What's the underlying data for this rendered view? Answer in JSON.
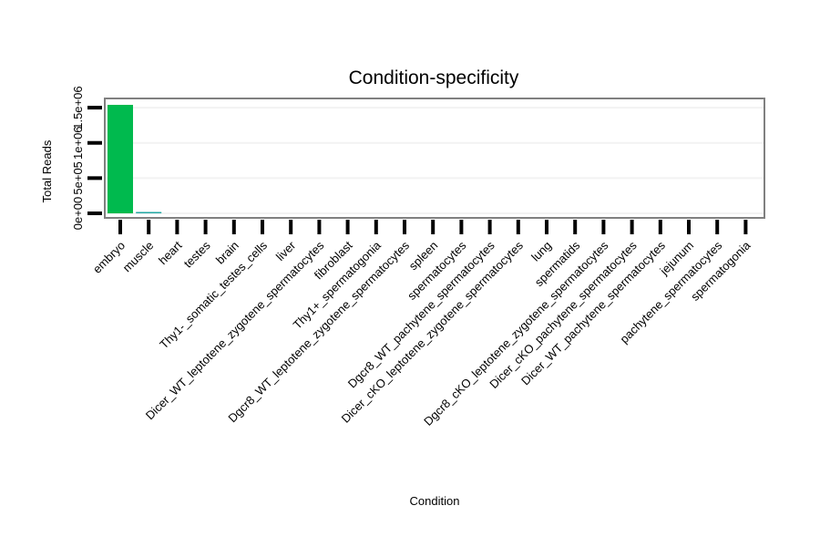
{
  "chart_data": {
    "type": "bar",
    "title": "Condition-specificity",
    "xlabel": "Condition",
    "ylabel": "Total Reads",
    "categories": [
      "embryo",
      "muscle",
      "heart",
      "testes",
      "brain",
      "Thy1-_somatic_testes_cells",
      "liver",
      "Dicer_WT_leptotene_zygotene_spermatocytes",
      "fibroblast",
      "Thy1+_spermatogonia",
      "Dgcr8_WT_leptotene_zygotene_spermatocytes",
      "spleen",
      "spermatocytes",
      "Dgcr8_WT_pachytene_spermatocytes",
      "Dicer_cKO_leptotene_zygotene_spermatocytes",
      "lung",
      "spermatids",
      "Dgcr8_cKO_leptotene_zygotene_spermatocytes",
      "Dicer_cKO_pachytene_spermatocytes",
      "Dicer_WT_pachytene_spermatocytes",
      "jejunum",
      "pachytene_spermatocytes",
      "spermatogonia"
    ],
    "values": [
      1540000,
      13000,
      0,
      0,
      0,
      0,
      0,
      0,
      0,
      0,
      0,
      0,
      0,
      0,
      0,
      0,
      0,
      0,
      0,
      0,
      0,
      0,
      0
    ],
    "yticks": [
      0,
      500000,
      1000000,
      1500000
    ],
    "ytick_labels": [
      "0e+00",
      "5e+05",
      "1e+06",
      "1.5e+06"
    ],
    "ylim": [
      0,
      1540000
    ],
    "grid": true,
    "colors": {
      "bar": "#00ba4e",
      "bar_small": "#22a7a3",
      "grid": "#f2f2f2",
      "frame": "#808080"
    }
  }
}
